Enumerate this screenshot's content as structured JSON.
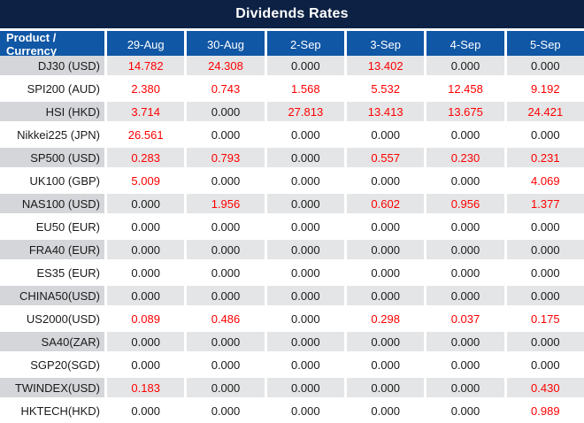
{
  "title": "Dividends Rates",
  "colors": {
    "title_bg": "#0d2144",
    "header_bg": "#1057a5",
    "header_text": "#ffffff",
    "stripe_label_bg": "#d4d6d9",
    "stripe_value_bg": "#e4e5e6",
    "nonzero_text": "#ff0000",
    "zero_text": "#1a1a1a",
    "row_bg": "#ffffff"
  },
  "chart_data": {
    "type": "table",
    "title": "Dividends Rates",
    "columns": [
      "Product / Currency",
      "29-Aug",
      "30-Aug",
      "2-Sep",
      "3-Sep",
      "4-Sep",
      "5-Sep"
    ],
    "rows": [
      {
        "product": "DJ30 (USD)",
        "values": [
          "14.782",
          "24.308",
          "0.000",
          "13.402",
          "0.000",
          "0.000"
        ]
      },
      {
        "product": "SPI200 (AUD)",
        "values": [
          "2.380",
          "0.743",
          "1.568",
          "5.532",
          "12.458",
          "9.192"
        ]
      },
      {
        "product": "HSI (HKD)",
        "values": [
          "3.714",
          "0.000",
          "27.813",
          "13.413",
          "13.675",
          "24.421"
        ]
      },
      {
        "product": "Nikkei225 (JPN)",
        "values": [
          "26.561",
          "0.000",
          "0.000",
          "0.000",
          "0.000",
          "0.000"
        ]
      },
      {
        "product": "SP500 (USD)",
        "values": [
          "0.283",
          "0.793",
          "0.000",
          "0.557",
          "0.230",
          "0.231"
        ]
      },
      {
        "product": "UK100 (GBP)",
        "values": [
          "5.009",
          "0.000",
          "0.000",
          "0.000",
          "0.000",
          "4.069"
        ]
      },
      {
        "product": "NAS100 (USD)",
        "values": [
          "0.000",
          "1.956",
          "0.000",
          "0.602",
          "0.956",
          "1.377"
        ]
      },
      {
        "product": "EU50 (EUR)",
        "values": [
          "0.000",
          "0.000",
          "0.000",
          "0.000",
          "0.000",
          "0.000"
        ]
      },
      {
        "product": "FRA40 (EUR)",
        "values": [
          "0.000",
          "0.000",
          "0.000",
          "0.000",
          "0.000",
          "0.000"
        ]
      },
      {
        "product": "ES35 (EUR)",
        "values": [
          "0.000",
          "0.000",
          "0.000",
          "0.000",
          "0.000",
          "0.000"
        ]
      },
      {
        "product": "CHINA50(USD)",
        "values": [
          "0.000",
          "0.000",
          "0.000",
          "0.000",
          "0.000",
          "0.000"
        ]
      },
      {
        "product": "US2000(USD)",
        "values": [
          "0.089",
          "0.486",
          "0.000",
          "0.298",
          "0.037",
          "0.175"
        ]
      },
      {
        "product": "SA40(ZAR)",
        "values": [
          "0.000",
          "0.000",
          "0.000",
          "0.000",
          "0.000",
          "0.000"
        ]
      },
      {
        "product": "SGP20(SGD)",
        "values": [
          "0.000",
          "0.000",
          "0.000",
          "0.000",
          "0.000",
          "0.000"
        ]
      },
      {
        "product": "TWINDEX(USD)",
        "values": [
          "0.183",
          "0.000",
          "0.000",
          "0.000",
          "0.000",
          "0.430"
        ]
      },
      {
        "product": "HKTECH(HKD)",
        "values": [
          "0.000",
          "0.000",
          "0.000",
          "0.000",
          "0.000",
          "0.989"
        ]
      }
    ],
    "legend": "non-zero dividend values rendered in red, zero values in black",
    "layout": "striped rows alternate gray/white starting gray; product labels right-aligned; values centered"
  }
}
